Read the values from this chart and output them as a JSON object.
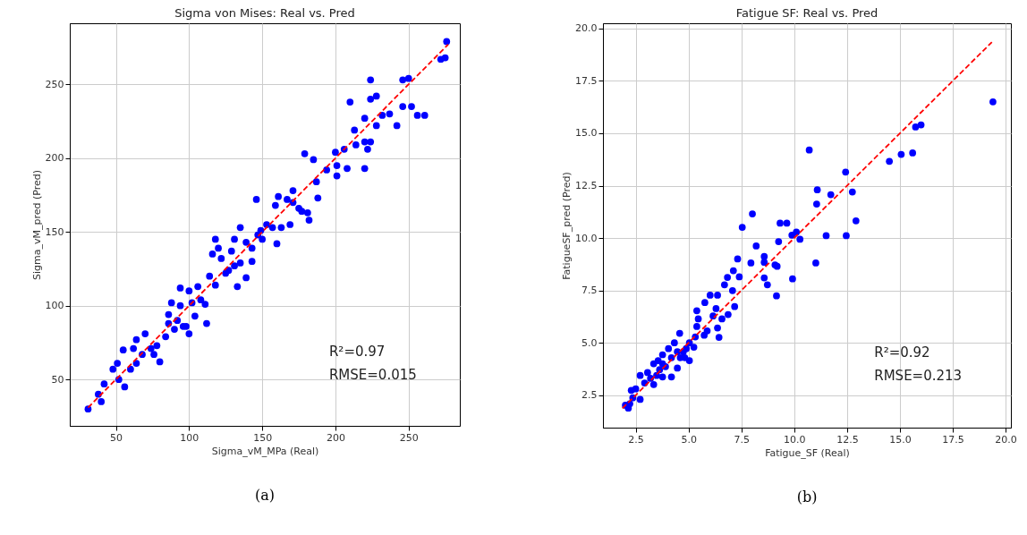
{
  "chart_data": [
    {
      "type": "scatter",
      "title": "Sigma von Mises: Real vs. Pred",
      "xlabel": "Sigma_vM_MPa (Real)",
      "ylabel": "Sigma_vM_pred (Pred)",
      "series": [
        {
          "marker": "circle",
          "color": "#0000ff",
          "x": [
            276,
            272,
            275,
            224,
            246,
            250,
            210,
            224,
            228,
            246,
            252,
            256,
            261,
            220,
            232,
            237,
            228,
            242,
            213,
            220,
            224,
            214,
            222,
            200,
            206,
            179,
            185,
            194,
            201,
            208,
            220,
            201,
            187,
            188,
            171,
            167,
            161,
            159,
            146,
            175,
            181,
            182,
            169,
            163,
            157,
            160,
            150,
            147,
            135,
            131,
            139,
            143,
            118,
            120,
            116,
            122,
            129,
            135,
            143,
            139,
            133,
            114,
            118,
            125,
            106,
            111,
            94,
            100,
            88,
            94,
            86,
            92,
            98,
            100,
            104,
            112,
            84,
            78,
            70,
            64,
            62,
            55,
            68,
            64,
            60,
            80,
            51,
            48,
            42,
            38,
            40,
            31,
            56,
            52,
            74,
            76,
            86,
            90,
            96,
            102,
            108,
            127,
            131,
            149,
            153,
            171,
            177
          ],
          "values": [
            279,
            267,
            268,
            253,
            253,
            254,
            238,
            240,
            242,
            235,
            235,
            229,
            229,
            227,
            229,
            230,
            222,
            222,
            219,
            211,
            211,
            209,
            206,
            204,
            206,
            203,
            199,
            192,
            195,
            193,
            193,
            188,
            184,
            173,
            178,
            172,
            174,
            168,
            172,
            166,
            163,
            158,
            155,
            153,
            153,
            142,
            145,
            148,
            153,
            145,
            143,
            139,
            145,
            139,
            135,
            132,
            137,
            129,
            130,
            119,
            113,
            120,
            114,
            122,
            113,
            101,
            112,
            110,
            102,
            100,
            94,
            90,
            86,
            81,
            93,
            88,
            79,
            73,
            81,
            77,
            71,
            70,
            67,
            61,
            57,
            62,
            61,
            57,
            47,
            40,
            35,
            30,
            45,
            50,
            71,
            67,
            88,
            84,
            86,
            102,
            104,
            124,
            127,
            151,
            155,
            170,
            164
          ]
        },
        {
          "type": "line",
          "marker": "none",
          "color": "#ff0000",
          "line_style": "dashed",
          "x": [
            31,
            277
          ],
          "values": [
            31,
            277
          ]
        }
      ],
      "xlim": [
        18.5,
        285
      ],
      "ylim": [
        18.6,
        291.4
      ],
      "xticks": [
        50,
        100,
        150,
        200,
        250
      ],
      "yticks": [
        50,
        100,
        150,
        200,
        250
      ],
      "grid": true,
      "annotations": [
        "R²=0.97",
        "RMSE=0.015",
        "(a)"
      ]
    },
    {
      "type": "scatter",
      "title": "Fatigue SF: Real vs. Pred",
      "xlabel": "Fatigue_SF (Real)",
      "ylabel": "FatigueSF_pred (Pred)",
      "series": [
        {
          "marker": "circle",
          "color": "#0000ff",
          "x": [
            19.4,
            15.74,
            16.0,
            15.6,
            15.06,
            14.5,
            10.71,
            12.43,
            11.09,
            11.73,
            11.06,
            12.75,
            12.92,
            11.51,
            12.46,
            11.02,
            8.02,
            7.54,
            9.33,
            9.65,
            9.89,
            10.1,
            10.27,
            9.26,
            8.2,
            8.58,
            8.58,
            7.95,
            9.09,
            9.19,
            8.58,
            8.73,
            9.92,
            9.16,
            7.32,
            7.12,
            7.4,
            6.84,
            6.7,
            7.08,
            7.18,
            6.02,
            6.37,
            5.77,
            6.3,
            6.16,
            5.39,
            6.87,
            6.58,
            5.46,
            5.39,
            6.37,
            6.44,
            5.88,
            5.74,
            4.58,
            5.04,
            5.25,
            4.75,
            4.33,
            4.47,
            5.04,
            4.82,
            4.05,
            4.19,
            3.77,
            3.91,
            3.63,
            4.47,
            3.35,
            3.49,
            3.06,
            4.19,
            3.35,
            2.92,
            2.71,
            2.5,
            2.71,
            2.36,
            2.22,
            2.15,
            2.01,
            2.29,
            3.77,
            4.61,
            4.89,
            3.77,
            5.32,
            3.2,
            3.56
          ],
          "values": [
            16.5,
            15.3,
            15.4,
            14.06,
            13.99,
            13.66,
            14.2,
            13.15,
            12.3,
            12.07,
            11.62,
            12.2,
            10.82,
            10.11,
            10.11,
            8.81,
            11.15,
            10.51,
            10.71,
            10.71,
            10.14,
            10.28,
            9.94,
            9.83,
            9.62,
            9.12,
            8.84,
            8.81,
            8.72,
            8.65,
            8.1,
            7.77,
            8.05,
            7.24,
            9.0,
            8.44,
            8.15,
            8.12,
            7.77,
            7.49,
            6.73,
            7.27,
            7.27,
            6.92,
            6.63,
            6.28,
            6.53,
            6.35,
            6.14,
            6.14,
            5.78,
            5.71,
            5.26,
            5.57,
            5.36,
            5.45,
            5.0,
            4.79,
            4.57,
            5.0,
            4.57,
            4.15,
            4.29,
            4.72,
            4.29,
            4.43,
            3.86,
            3.72,
            3.79,
            4.0,
            3.44,
            3.58,
            3.37,
            3.01,
            3.08,
            3.44,
            2.8,
            2.3,
            2.37,
            2.09,
            1.88,
            2.02,
            2.73,
            4.0,
            4.29,
            4.72,
            3.37,
            5.28,
            3.3,
            4.15
          ]
        },
        {
          "type": "line",
          "marker": "none",
          "color": "#ff0000",
          "line_style": "dashed",
          "x": [
            1.87,
            19.35
          ],
          "values": [
            1.87,
            19.35
          ]
        }
      ],
      "xlim": [
        0.95,
        20.25
      ],
      "ylim": [
        0.95,
        20.25
      ],
      "xticks": [
        2.5,
        {
          "value": 5,
          "label": "5.0"
        },
        7.5,
        {
          "value": 10,
          "label": "10.0"
        },
        12.5,
        {
          "value": 15,
          "label": "15.0"
        },
        17.5,
        {
          "value": 20,
          "label": "20.0"
        }
      ],
      "yticks": [
        2.5,
        {
          "value": 5,
          "label": "5.0"
        },
        7.5,
        {
          "value": 10,
          "label": "10.0"
        },
        12.5,
        {
          "value": 15,
          "label": "15.0"
        },
        17.5,
        {
          "value": 20,
          "label": "20.0"
        }
      ],
      "grid": true,
      "annotations": [
        "R²=0.92",
        "RMSE=0.213",
        "(b)"
      ]
    }
  ]
}
